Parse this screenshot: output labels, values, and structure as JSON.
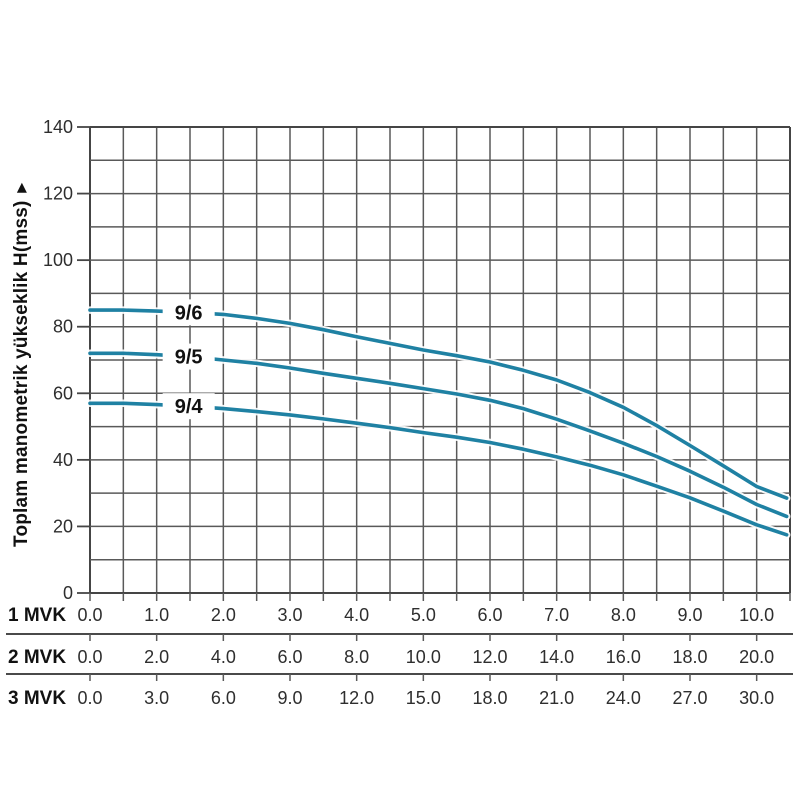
{
  "chart_data": {
    "type": "line",
    "title": "",
    "ylabel": "Toplam manometrik yükseklik H(mss)",
    "ylabel_arrow": "▶",
    "grid": true,
    "legend_position": "on-curve",
    "ylim": [
      0,
      140
    ],
    "xlim": [
      0,
      10.5
    ],
    "y_axis": {
      "min": 0,
      "max": 140,
      "grid_step": 10,
      "ticks": [
        0,
        20,
        40,
        60,
        80,
        100,
        120,
        140
      ]
    },
    "x_axis": {
      "min": 0,
      "max": 10.5,
      "grid_step": 0.5,
      "label_step": 1.0
    },
    "x_rows": [
      {
        "label": "1 MVK",
        "ticks": [
          "0.0",
          "1.0",
          "2.0",
          "3.0",
          "4.0",
          "5.0",
          "6.0",
          "7.0",
          "8.0",
          "9.0",
          "10.0"
        ]
      },
      {
        "label": "2 MVK",
        "ticks": [
          "0.0",
          "2.0",
          "4.0",
          "6.0",
          "8.0",
          "10.0",
          "12.0",
          "14.0",
          "16.0",
          "18.0",
          "20.0"
        ]
      },
      {
        "label": "3 MVK",
        "ticks": [
          "0.0",
          "3.0",
          "6.0",
          "9.0",
          "12.0",
          "15.0",
          "18.0",
          "21.0",
          "24.0",
          "27.0",
          "30.0"
        ]
      }
    ],
    "series": [
      {
        "name": "9/6",
        "label_x": 1.48,
        "points": [
          [
            0,
            85
          ],
          [
            0.5,
            85
          ],
          [
            1,
            84.7
          ],
          [
            1.5,
            84.3
          ],
          [
            2,
            83.7
          ],
          [
            2.5,
            82.5
          ],
          [
            3,
            81
          ],
          [
            3.5,
            79.1
          ],
          [
            4,
            77
          ],
          [
            4.5,
            75
          ],
          [
            5,
            73
          ],
          [
            5.5,
            71.3
          ],
          [
            6,
            69.4
          ],
          [
            6.5,
            66.9
          ],
          [
            7,
            64
          ],
          [
            7.5,
            60.2
          ],
          [
            8,
            55.8
          ],
          [
            8.5,
            50.3
          ],
          [
            9,
            44.3
          ],
          [
            9.5,
            38.2
          ],
          [
            10,
            32
          ],
          [
            10.45,
            28.5
          ]
        ]
      },
      {
        "name": "9/5",
        "label_x": 1.48,
        "points": [
          [
            0,
            72
          ],
          [
            0.5,
            72
          ],
          [
            1,
            71.6
          ],
          [
            1.5,
            71
          ],
          [
            2,
            70
          ],
          [
            2.5,
            69
          ],
          [
            3,
            67.6
          ],
          [
            3.5,
            66
          ],
          [
            4,
            64.5
          ],
          [
            4.5,
            63
          ],
          [
            5,
            61.4
          ],
          [
            5.5,
            59.8
          ],
          [
            6,
            57.9
          ],
          [
            6.5,
            55.4
          ],
          [
            7,
            52.2
          ],
          [
            7.5,
            48.7
          ],
          [
            8,
            45
          ],
          [
            8.5,
            41
          ],
          [
            9,
            36.6
          ],
          [
            9.5,
            31.8
          ],
          [
            10,
            26.6
          ],
          [
            10.45,
            23
          ]
        ]
      },
      {
        "name": "9/4",
        "label_x": 1.48,
        "points": [
          [
            0,
            57
          ],
          [
            0.5,
            57
          ],
          [
            1,
            56.6
          ],
          [
            1.5,
            56.1
          ],
          [
            2,
            55.4
          ],
          [
            2.5,
            54.5
          ],
          [
            3,
            53.5
          ],
          [
            3.5,
            52.3
          ],
          [
            4,
            51
          ],
          [
            4.5,
            49.7
          ],
          [
            5,
            48.2
          ],
          [
            5.5,
            46.8
          ],
          [
            6,
            45.2
          ],
          [
            6.5,
            43.2
          ],
          [
            7,
            40.9
          ],
          [
            7.5,
            38.4
          ],
          [
            8,
            35.5
          ],
          [
            8.5,
            32.1
          ],
          [
            9,
            28.6
          ],
          [
            9.5,
            24.6
          ],
          [
            10,
            20.5
          ],
          [
            10.45,
            17.5
          ]
        ]
      }
    ],
    "colors": {
      "curve": "#1f81a3",
      "curve_halo": "#ffffff",
      "grid": "#595959",
      "border": "#454545",
      "tick_text": "#2e2e2e",
      "label_text": "#111111",
      "separator": "#4a4a4a",
      "background": "#ffffff"
    }
  }
}
